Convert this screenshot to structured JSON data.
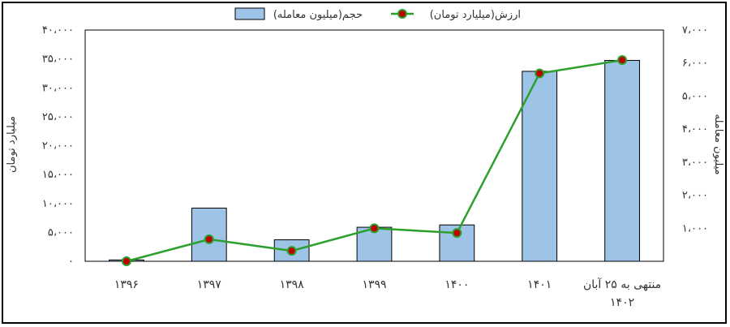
{
  "chart_data": {
    "type": "bar+line",
    "categories": [
      "۱۳۹۶",
      "۱۳۹۷",
      "۱۳۹۸",
      "۱۳۹۹",
      "۱۴۰۰",
      "۱۴۰۱",
      "منتهی به ۲۵ آبان ۱۴۰۲"
    ],
    "category_lines": [
      [
        "۱۳۹۶"
      ],
      [
        "۱۳۹۷"
      ],
      [
        "۱۳۹۸"
      ],
      [
        "۱۳۹۹"
      ],
      [
        "۱۴۰۰"
      ],
      [
        "۱۴۰۱"
      ],
      [
        "منتهی به ۲۵ آبان",
        "۱۴۰۲"
      ]
    ],
    "series": [
      {
        "name": "حجم(میلیون معامله)",
        "type": "bar",
        "axis": "right",
        "color": "#9DC3E6",
        "values": [
          40,
          1610,
          650,
          1030,
          1100,
          5750,
          6080
        ]
      },
      {
        "name": "ارزش(میلیارد تومان)",
        "type": "line",
        "axis": "left",
        "line_color": "#2CA02C",
        "marker_color": "#C00000",
        "values": [
          0,
          3800,
          1800,
          5700,
          4900,
          32500,
          34800
        ]
      }
    ],
    "left_axis": {
      "label": "میلیارد تومان",
      "ylim": [
        0,
        40000
      ],
      "ticks": [
        "۰",
        "۵،۰۰۰",
        "۱۰،۰۰۰",
        "۱۵،۰۰۰",
        "۲۰،۰۰۰",
        "۲۵،۰۰۰",
        "۳۰،۰۰۰",
        "۳۵،۰۰۰",
        "۴۰،۰۰۰"
      ]
    },
    "right_axis": {
      "label": "میلیون معامله",
      "ylim": [
        0,
        7000
      ],
      "ticks": [
        "",
        "۱،۰۰۰",
        "۲،۰۰۰",
        "۳،۰۰۰",
        "۴،۰۰۰",
        "۵،۰۰۰",
        "۶،۰۰۰",
        "۷،۰۰۰"
      ]
    },
    "legend_position": "top-center",
    "grid": false
  }
}
